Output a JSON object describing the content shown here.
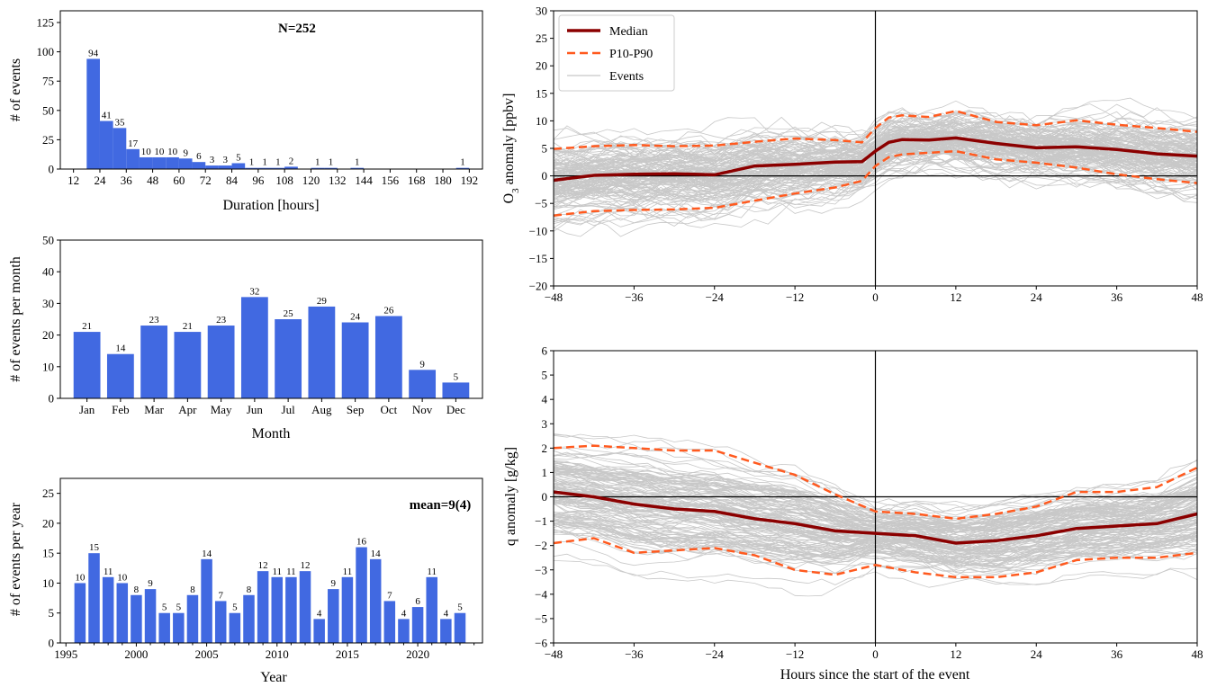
{
  "colors": {
    "bar": "#4169e1",
    "median": "#8b0000",
    "p10p90": "#ff5a1f",
    "events": "#c8c8c8"
  },
  "chart_data": [
    {
      "id": "duration",
      "type": "bar",
      "annotation": "N=252",
      "xlabel": "Duration [hours]",
      "ylabel": "# of events",
      "xlim": [
        6,
        198
      ],
      "ylim": [
        0,
        135
      ],
      "xticks": [
        "12",
        "24",
        "36",
        "48",
        "60",
        "72",
        "84",
        "96",
        "108",
        "120",
        "132",
        "144",
        "156",
        "168",
        "180",
        "192"
      ],
      "yticks": [
        "0",
        "25",
        "50",
        "75",
        "100",
        "125"
      ],
      "bin_width": 6,
      "bins": [
        {
          "x": 18,
          "value": 94
        },
        {
          "x": 24,
          "value": 41
        },
        {
          "x": 30,
          "value": 35
        },
        {
          "x": 36,
          "value": 17
        },
        {
          "x": 42,
          "value": 10
        },
        {
          "x": 48,
          "value": 10
        },
        {
          "x": 54,
          "value": 10
        },
        {
          "x": 60,
          "value": 9
        },
        {
          "x": 66,
          "value": 6
        },
        {
          "x": 72,
          "value": 3
        },
        {
          "x": 78,
          "value": 3
        },
        {
          "x": 84,
          "value": 5
        },
        {
          "x": 90,
          "value": 1
        },
        {
          "x": 96,
          "value": 1
        },
        {
          "x": 102,
          "value": 1
        },
        {
          "x": 108,
          "value": 2
        },
        {
          "x": 120,
          "value": 1
        },
        {
          "x": 126,
          "value": 1
        },
        {
          "x": 138,
          "value": 1
        },
        {
          "x": 186,
          "value": 1
        }
      ]
    },
    {
      "id": "monthly",
      "type": "bar",
      "xlabel": "Month",
      "ylabel": "# of events per month",
      "ylim": [
        0,
        50
      ],
      "yticks": [
        "0",
        "10",
        "20",
        "30",
        "40",
        "50"
      ],
      "categories": [
        "Jan",
        "Feb",
        "Mar",
        "Apr",
        "May",
        "Jun",
        "Jul",
        "Aug",
        "Sep",
        "Oct",
        "Nov",
        "Dec"
      ],
      "values": [
        21,
        14,
        23,
        21,
        23,
        32,
        25,
        29,
        24,
        26,
        9,
        5
      ]
    },
    {
      "id": "yearly",
      "type": "bar",
      "annotation": "mean=9(4)",
      "xlabel": "Year",
      "ylabel": "# of events per year",
      "xlim": [
        1994.6,
        2024.6
      ],
      "ylim": [
        0,
        27.5
      ],
      "xticks": [
        "1995",
        "2000",
        "2005",
        "2010",
        "2015",
        "2020"
      ],
      "yticks": [
        "0",
        "5",
        "10",
        "15",
        "20",
        "25"
      ],
      "years": [
        1996,
        1997,
        1998,
        1999,
        2000,
        2001,
        2002,
        2003,
        2004,
        2005,
        2006,
        2007,
        2008,
        2009,
        2010,
        2011,
        2012,
        2013,
        2014,
        2015,
        2016,
        2017,
        2018,
        2019,
        2020,
        2021,
        2022,
        2023
      ],
      "values": [
        10,
        15,
        11,
        10,
        8,
        9,
        5,
        5,
        8,
        14,
        7,
        5,
        8,
        12,
        11,
        11,
        12,
        4,
        9,
        11,
        16,
        14,
        7,
        4,
        6,
        11,
        4,
        5
      ]
    },
    {
      "id": "o3",
      "type": "line",
      "ylabel": "O3 anomaly [ppbv]",
      "xlabel": "",
      "xlim": [
        -48,
        48
      ],
      "ylim": [
        -20,
        30
      ],
      "xticks": [
        "−48",
        "−36",
        "−24",
        "−12",
        "0",
        "12",
        "24",
        "36",
        "48"
      ],
      "yticks": [
        "−20",
        "−15",
        "−10",
        "−5",
        "0",
        "5",
        "10",
        "15",
        "20",
        "25",
        "30"
      ],
      "legend": {
        "position": "top-left",
        "entries": [
          "Median",
          "P10-P90",
          "Events"
        ]
      },
      "x": [
        -48,
        -42,
        -36,
        -30,
        -24,
        -18,
        -12,
        -6,
        -2,
        0,
        2,
        4,
        8,
        12,
        18,
        24,
        30,
        36,
        42,
        48
      ],
      "series": [
        {
          "name": "Median",
          "values": [
            -0.8,
            0.1,
            0.3,
            0.4,
            0.2,
            1.8,
            2.1,
            2.5,
            2.6,
            4.5,
            6.1,
            6.6,
            6.5,
            6.9,
            5.9,
            5.1,
            5.3,
            4.8,
            4.0,
            3.6
          ]
        },
        {
          "name": "P10-P90",
          "values": [
            4.9,
            5.4,
            5.6,
            5.4,
            5.5,
            6.2,
            6.8,
            6.5,
            6.1,
            8.7,
            10.6,
            11.0,
            10.7,
            11.8,
            9.8,
            9.2,
            10.1,
            9.3,
            8.7,
            8.0
          ]
        },
        {
          "name": "P10-P90",
          "values": [
            -7.2,
            -6.4,
            -6.2,
            -6.1,
            -5.8,
            -4.5,
            -3.2,
            -2.1,
            -0.9,
            1.8,
            3.4,
            3.9,
            4.2,
            4.5,
            3.0,
            2.4,
            1.5,
            0.3,
            -0.6,
            -1.3
          ]
        }
      ]
    },
    {
      "id": "q",
      "type": "line",
      "ylabel": "q anomaly [g/kg]",
      "xlabel": "Hours since the start of the event",
      "xlim": [
        -48,
        48
      ],
      "ylim": [
        -6,
        6
      ],
      "xticks": [
        "−48",
        "−36",
        "−24",
        "−12",
        "0",
        "12",
        "24",
        "36",
        "48"
      ],
      "yticks": [
        "−6",
        "−5",
        "−4",
        "−3",
        "−2",
        "−1",
        "0",
        "1",
        "2",
        "3",
        "4",
        "5",
        "6"
      ],
      "x": [
        -48,
        -42,
        -36,
        -30,
        -24,
        -18,
        -12,
        -6,
        0,
        6,
        12,
        18,
        24,
        30,
        36,
        42,
        48
      ],
      "series": [
        {
          "name": "Median",
          "values": [
            0.2,
            0.0,
            -0.3,
            -0.5,
            -0.6,
            -0.9,
            -1.1,
            -1.4,
            -1.5,
            -1.6,
            -1.9,
            -1.8,
            -1.6,
            -1.3,
            -1.2,
            -1.1,
            -0.7
          ]
        },
        {
          "name": "P10-P90",
          "values": [
            2.0,
            2.1,
            2.0,
            1.9,
            1.9,
            1.4,
            0.9,
            0.1,
            -0.6,
            -0.7,
            -0.9,
            -0.7,
            -0.4,
            0.2,
            0.2,
            0.4,
            1.2
          ]
        },
        {
          "name": "P10-P90",
          "values": [
            -1.9,
            -1.7,
            -2.3,
            -2.2,
            -2.1,
            -2.4,
            -3.0,
            -3.2,
            -2.8,
            -3.1,
            -3.3,
            -3.3,
            -3.1,
            -2.6,
            -2.5,
            -2.5,
            -2.3
          ]
        }
      ]
    }
  ]
}
